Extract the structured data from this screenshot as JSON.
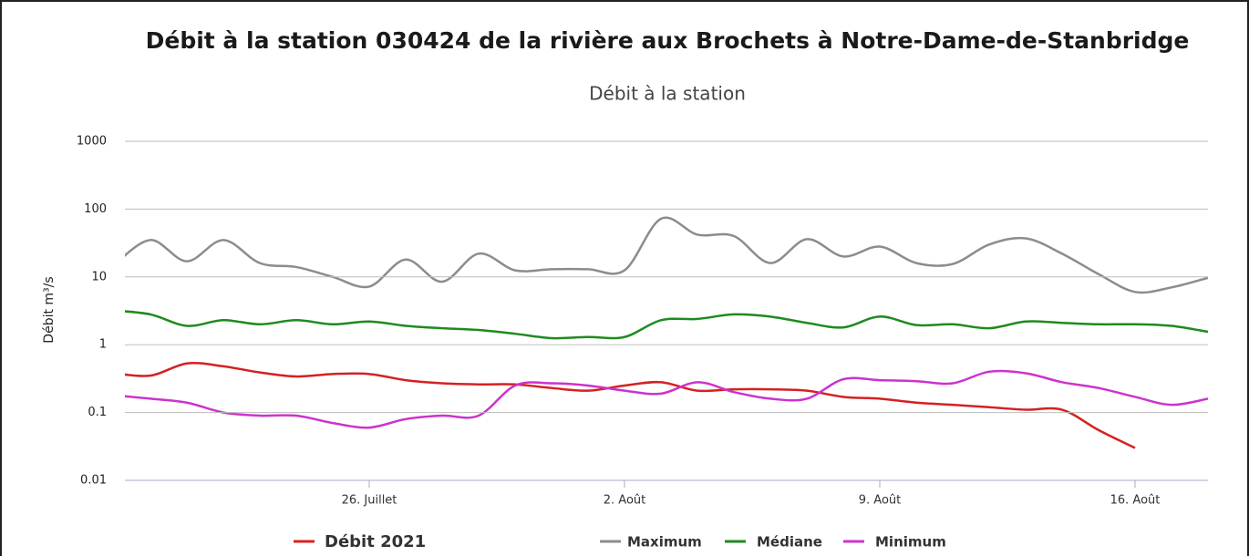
{
  "chart_data": {
    "type": "line",
    "title": "Débit à la station 030424 de la rivière aux Brochets à Notre-Dame-de-Stanbridge",
    "subtitle": "Débit à la station",
    "y_label": "Débit m³/s",
    "log_scale": true,
    "grid": true,
    "legend": "bottom",
    "ylim": [
      0.01,
      1000
    ],
    "yticks": [
      0.01,
      0.1,
      1,
      10,
      100,
      1000
    ],
    "categories": [
      null,
      null,
      null,
      null,
      null,
      null,
      null,
      "26. Juillet",
      null,
      null,
      null,
      null,
      null,
      null,
      "2. Août",
      null,
      null,
      null,
      null,
      null,
      null,
      "9. Août",
      null,
      null,
      null,
      null,
      null,
      null,
      "16. Août",
      null,
      null
    ],
    "series": [
      {
        "name": "Débit 2021",
        "color": "#d42121",
        "values": [
          0.38,
          0.35,
          0.53,
          0.48,
          0.39,
          0.34,
          0.37,
          0.37,
          0.3,
          0.27,
          0.26,
          0.26,
          0.23,
          0.21,
          0.25,
          0.28,
          0.21,
          0.22,
          0.22,
          0.21,
          0.17,
          0.16,
          0.14,
          0.13,
          0.12,
          0.11,
          0.11,
          0.055,
          0.03,
          null,
          null
        ]
      },
      {
        "name": "Maximum",
        "color": "#8c8c8c",
        "values": [
          15,
          35,
          17,
          35,
          16,
          14,
          10,
          7.2,
          18,
          8.5,
          22,
          12.5,
          13,
          13,
          12.5,
          72,
          42,
          40,
          16,
          36,
          20,
          28,
          16,
          15.5,
          30,
          37,
          22,
          11,
          6,
          7,
          9.7
        ]
      },
      {
        "name": "Médiane",
        "color": "#1f8a1f",
        "values": [
          3.2,
          2.8,
          1.9,
          2.3,
          2.0,
          2.3,
          2.0,
          2.2,
          1.9,
          1.75,
          1.65,
          1.45,
          1.25,
          1.3,
          1.3,
          2.3,
          2.4,
          2.8,
          2.6,
          2.1,
          1.8,
          2.6,
          1.95,
          2.0,
          1.75,
          2.2,
          2.1,
          2.0,
          2.0,
          1.9,
          1.55
        ]
      },
      {
        "name": "Minimum",
        "color": "#cc33cc",
        "values": [
          0.18,
          0.16,
          0.14,
          0.1,
          0.09,
          0.09,
          0.07,
          0.06,
          0.08,
          0.09,
          0.09,
          0.25,
          0.27,
          0.25,
          0.21,
          0.19,
          0.28,
          0.2,
          0.16,
          0.16,
          0.31,
          0.3,
          0.29,
          0.27,
          0.4,
          0.38,
          0.28,
          0.23,
          0.17,
          0.13,
          0.16
        ]
      }
    ]
  }
}
